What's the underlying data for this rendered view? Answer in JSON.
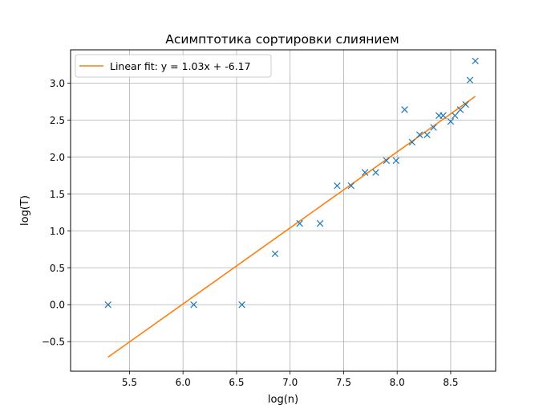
{
  "chart_data": {
    "type": "scatter",
    "title": "Асимптотика сортировки слиянием",
    "xlabel": "log(n)",
    "ylabel": "log(T)",
    "xlim": [
      4.95,
      8.92
    ],
    "ylim": [
      -0.9,
      3.45
    ],
    "grid": true,
    "legend_placement": "top-left",
    "x_ticks": [
      5.5,
      6.0,
      6.5,
      7.0,
      7.5,
      8.0,
      8.5
    ],
    "x_tick_labels": [
      "5.5",
      "6.0",
      "6.5",
      "7.0",
      "7.5",
      "8.0",
      "8.5"
    ],
    "y_ticks": [
      -0.5,
      0.0,
      0.5,
      1.0,
      1.5,
      2.0,
      2.5,
      3.0
    ],
    "y_tick_labels": [
      "−0.5",
      "0.0",
      "0.5",
      "1.0",
      "1.5",
      "2.0",
      "2.5",
      "3.0"
    ],
    "series": [
      {
        "marker": "x",
        "color": "#1f77b4",
        "points": [
          [
            5.3,
            0.0
          ],
          [
            6.1,
            0.0
          ],
          [
            6.55,
            0.0
          ],
          [
            6.86,
            0.69
          ],
          [
            7.09,
            1.1
          ],
          [
            7.28,
            1.1
          ],
          [
            7.44,
            1.61
          ],
          [
            7.57,
            1.61
          ],
          [
            7.7,
            1.79
          ],
          [
            7.8,
            1.79
          ],
          [
            7.9,
            1.95
          ],
          [
            7.99,
            1.95
          ],
          [
            8.07,
            2.64
          ],
          [
            8.14,
            2.2
          ],
          [
            8.21,
            2.3
          ],
          [
            8.28,
            2.3
          ],
          [
            8.34,
            2.4
          ],
          [
            8.39,
            2.56
          ],
          [
            8.43,
            2.56
          ],
          [
            8.5,
            2.48
          ],
          [
            8.54,
            2.56
          ],
          [
            8.59,
            2.64
          ],
          [
            8.64,
            2.71
          ],
          [
            8.68,
            3.04
          ],
          [
            8.73,
            3.3
          ]
        ]
      },
      {
        "name": "Linear fit: y = 1.03x + -6.17",
        "type": "line",
        "color": "#ff7f0e",
        "points": [
          [
            5.3,
            -0.71
          ],
          [
            8.73,
            2.82
          ]
        ]
      }
    ]
  }
}
